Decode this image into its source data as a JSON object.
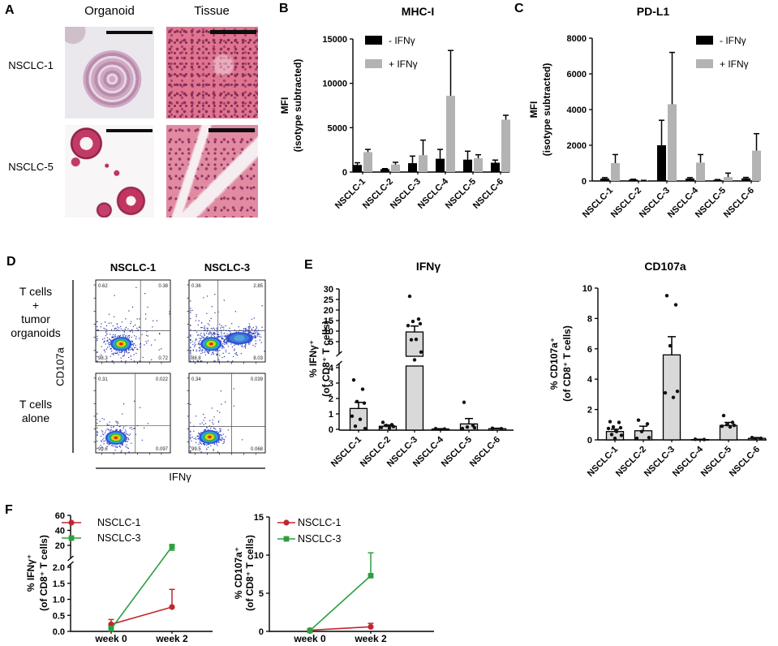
{
  "panels": {
    "A": {
      "label": "A",
      "column_headers": [
        "Organoid",
        "Tissue"
      ],
      "row_labels": [
        "NSCLC-1",
        "NSCLC-5"
      ]
    },
    "B": {
      "label": "B"
    },
    "C": {
      "label": "C"
    },
    "D": {
      "label": "D"
    },
    "E": {
      "label": "E"
    },
    "F": {
      "label": "F"
    }
  },
  "colors": {
    "series_negative": "#000000",
    "series_positive": "#b3b3b3",
    "bar_fill_light": "#d9d9d9",
    "nsclc1_red": "#c0272d",
    "nsclc3_green": "#2e9e41"
  },
  "chart_data": [
    {
      "id": "mhc1",
      "type": "bar",
      "title": "MHC-I",
      "ylabel_lines": [
        "MFI",
        "(isotype subtracted)"
      ],
      "categories": [
        "NSCLC-1",
        "NSCLC-2",
        "NSCLC-3",
        "NSCLC-4",
        "NSCLC-5",
        "NSCLC-6"
      ],
      "ylim": [
        0,
        15000
      ],
      "yticks": [
        0,
        5000,
        10000,
        15000
      ],
      "series": [
        {
          "name": "- IFNγ",
          "color": "#000000",
          "values": [
            800,
            330,
            1000,
            1500,
            1400,
            1050
          ],
          "errors": [
            250,
            60,
            800,
            1050,
            950,
            300
          ]
        },
        {
          "name": "+ IFNγ",
          "color": "#b3b3b3",
          "values": [
            2250,
            850,
            1900,
            8600,
            1550,
            5900
          ],
          "errors": [
            300,
            250,
            1700,
            5100,
            400,
            500
          ]
        }
      ]
    },
    {
      "id": "pdl1",
      "type": "bar",
      "title": "PD-L1",
      "ylabel_lines": [
        "MFI",
        "(isotype subtracted)"
      ],
      "categories": [
        "NSCLC-1",
        "NSCLC-2",
        "NSCLC-3",
        "NSCLC-4",
        "NSCLC-5",
        "NSCLC-6"
      ],
      "ylim": [
        0,
        8000
      ],
      "yticks": [
        0,
        2000,
        4000,
        6000,
        8000
      ],
      "series": [
        {
          "name": "- IFNγ",
          "color": "#000000",
          "values": [
            140,
            80,
            2000,
            140,
            60,
            150
          ],
          "errors": [
            50,
            20,
            1400,
            50,
            20,
            50
          ]
        },
        {
          "name": "+ IFNγ",
          "color": "#b3b3b3",
          "values": [
            1000,
            25,
            4300,
            1030,
            220,
            1700
          ],
          "errors": [
            480,
            10,
            2900,
            450,
            220,
            950
          ]
        }
      ]
    },
    {
      "id": "ifng_bar",
      "type": "dot-bar",
      "title": "IFNγ",
      "ylabel_lines": [
        "% IFNγ⁺",
        "(of CD8⁺ T cells)"
      ],
      "bar_color": "#d9d9d9",
      "categories": [
        "NSCLC-1",
        "NSCLC-2",
        "NSCLC-3",
        "NSCLC-4",
        "NSCLC-5",
        "NSCLC-6"
      ],
      "means": [
        1.35,
        0.2,
        9.6,
        0.02,
        0.35,
        0.04
      ],
      "errors": [
        0.4,
        0.08,
        2.8,
        0.02,
        0.35,
        0.03
      ],
      "points": [
        [
          3.2,
          2.6,
          1.8,
          1.7,
          0.85,
          0.65,
          0.2,
          0.05
        ],
        [
          0.45,
          0.3,
          0.25,
          0.18,
          0.12,
          0.08
        ],
        [
          26.5,
          15.7,
          14.6,
          13.5,
          12.6,
          6.1,
          5.9,
          4.6,
          4.3
        ],
        [
          0.04,
          0.02
        ],
        [
          1.75,
          0.25,
          0.15,
          0.1,
          0.05
        ],
        [
          0.07,
          0.04
        ]
      ],
      "axis_segments": [
        {
          "range": [
            0,
            4
          ],
          "ticks": [
            "0",
            "1",
            "2",
            "3",
            "4"
          ]
        },
        {
          "range": [
            5,
            30
          ],
          "ticks": [
            "5",
            "10",
            "15",
            "20",
            "25",
            "30"
          ]
        }
      ]
    },
    {
      "id": "cd107a_bar",
      "type": "dot-bar",
      "title": "CD107a",
      "ylabel_lines": [
        "% CD107a⁺",
        "(of CD8⁺ T cells)"
      ],
      "bar_color": "#d9d9d9",
      "categories": [
        "NSCLC-1",
        "NSCLC-2",
        "NSCLC-3",
        "NSCLC-4",
        "NSCLC-5",
        "NSCLC-6"
      ],
      "means": [
        0.55,
        0.6,
        5.6,
        0.02,
        0.95,
        0.1
      ],
      "errors": [
        0.15,
        0.3,
        1.2,
        0.02,
        0.2,
        0.05
      ],
      "points": [
        [
          1.2,
          1.15,
          0.85,
          0.8,
          0.75,
          0.55,
          0.35,
          0.3,
          0.1
        ],
        [
          1.3,
          1.05,
          0.55,
          0.15,
          0.1
        ],
        [
          9.5,
          8.9,
          6.2,
          3.2,
          3.1,
          2.8
        ],
        [
          0.04,
          0.02
        ],
        [
          1.6,
          1.15,
          1.0,
          0.95,
          0.9,
          0.85
        ],
        [
          0.15,
          0.1,
          0.08
        ]
      ],
      "axis_segments": [
        {
          "range": [
            0,
            10
          ],
          "ticks": [
            "0",
            "2",
            "4",
            "6",
            "8",
            "10"
          ]
        }
      ]
    },
    {
      "id": "ifng_line",
      "type": "line",
      "ylabel_lines": [
        "% IFNγ⁺",
        "(of CD8⁺ T cells)"
      ],
      "x_labels": [
        "week 0",
        "week 2"
      ],
      "axis_segments": [
        {
          "range": [
            0,
            2
          ],
          "ticks": [
            "0.0",
            "0.5",
            "1.0",
            "1.5",
            "2.0"
          ]
        },
        {
          "range": [
            20,
            60
          ],
          "ticks": [
            "20",
            "40",
            "60"
          ]
        }
      ],
      "series": [
        {
          "name": "NSCLC-1",
          "color": "#c0272d",
          "marker": "circle",
          "values": [
            0.22,
            0.76
          ],
          "err_up": [
            0.15,
            0.55
          ],
          "err_down": [
            0.12,
            0
          ]
        },
        {
          "name": "NSCLC-3",
          "color": "#2e9e41",
          "marker": "square",
          "values": [
            0.08,
            19
          ],
          "err_up": [
            0.08,
            2
          ],
          "err_down": [
            0,
            3
          ]
        }
      ]
    },
    {
      "id": "cd107a_line",
      "type": "line",
      "ylabel_lines": [
        "% CD107a⁺",
        "(of CD8⁺ T cells)"
      ],
      "x_labels": [
        "week 0",
        "week 2"
      ],
      "axis_segments": [
        {
          "range": [
            0,
            15
          ],
          "ticks": [
            "0",
            "5",
            "10",
            "15"
          ]
        }
      ],
      "series": [
        {
          "name": "NSCLC-1",
          "color": "#c0272d",
          "marker": "circle",
          "values": [
            0.15,
            0.6
          ],
          "err_up": [
            0.05,
            0.45
          ],
          "err_down": [
            0,
            0
          ]
        },
        {
          "name": "NSCLC-3",
          "color": "#2e9e41",
          "marker": "square",
          "values": [
            0.1,
            7.3
          ],
          "err_up": [
            0.1,
            3.0
          ],
          "err_down": [
            0,
            0
          ]
        }
      ]
    },
    {
      "id": "flow",
      "type": "flow-cytometry",
      "columns": [
        "NSCLC-1",
        "NSCLC-3"
      ],
      "row_labels": [
        [
          "T cells",
          "+",
          "tumor",
          "organoids"
        ],
        [
          "T cells",
          "alone"
        ]
      ],
      "xlabel": "IFNγ",
      "ylabel": "CD107a",
      "plots": [
        {
          "column": "NSCLC-1",
          "row": "T cells + tumor organoids",
          "quadrants": [
            "0.62",
            "0.38",
            "98.3",
            "0.72"
          ]
        },
        {
          "column": "NSCLC-3",
          "row": "T cells + tumor organoids",
          "quadrants": [
            "0.36",
            "2.85",
            "88.8",
            "8.03"
          ]
        },
        {
          "column": "NSCLC-1",
          "row": "T cells alone",
          "quadrants": [
            "0.31",
            "0.022",
            "99.6",
            "0.097"
          ]
        },
        {
          "column": "NSCLC-3",
          "row": "T cells alone",
          "quadrants": [
            "0.34",
            "0.039",
            "99.5",
            "0.068"
          ]
        }
      ]
    }
  ]
}
